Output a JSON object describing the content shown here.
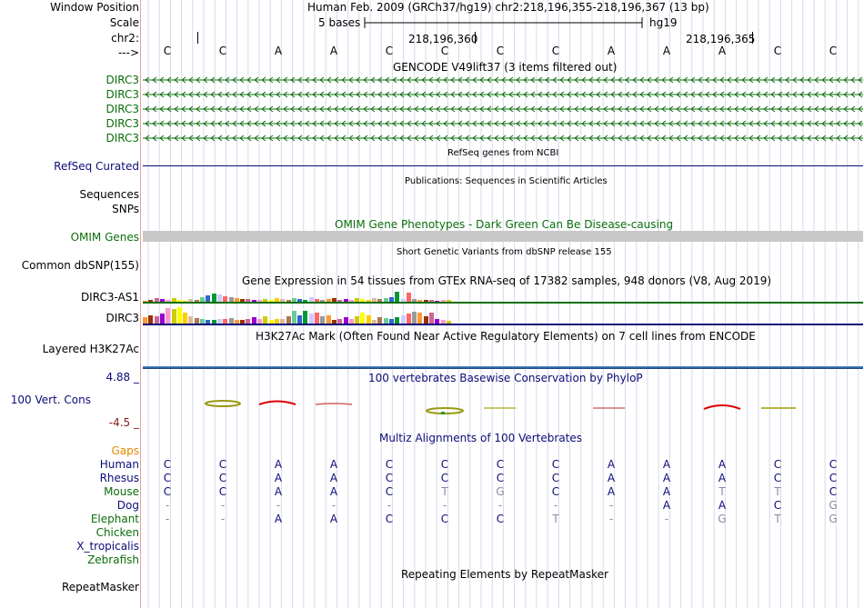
{
  "header": {
    "window_position_label": "Window Position",
    "scale_label": "Scale",
    "chr_label": "chr2:",
    "strand_label": "--->",
    "position_text": "Human Feb. 2009 (GRCh37/hg19)   chr2:218,196,355-218,196,367 (13 bp)",
    "scale_text": "5 bases",
    "assembly_text": "hg19",
    "tick_1": "218,196,360",
    "tick_2": "218,196,365"
  },
  "sequence": [
    "C",
    "C",
    "A",
    "A",
    "C",
    "C",
    "C",
    "C",
    "A",
    "A",
    "A",
    "C",
    "C"
  ],
  "gencode": {
    "title": "GENCODE V49lift37 (3 items filtered out)",
    "items": [
      "DIRC3",
      "DIRC3",
      "DIRC3",
      "DIRC3",
      "DIRC3"
    ]
  },
  "refseq": {
    "title": "RefSeq genes from NCBI",
    "label": "RefSeq Curated"
  },
  "publications": {
    "title": "Publications: Sequences in Scientific Articles",
    "label_1": "Sequences",
    "label_2": "SNPs"
  },
  "omim": {
    "title": "OMIM Gene Phenotypes - Dark Green Can Be Disease-causing",
    "label": "OMIM Genes"
  },
  "dbsnp": {
    "title": "Short Genetic Variants from dbSNP release 155",
    "label": "Common dbSNP(155)"
  },
  "gtex": {
    "title": "Gene Expression in 54 tissues from GTEx RNA-seq of 17382 samples, 948 donors (V8, Aug 2019)",
    "label_1": "DIRC3-AS1",
    "label_2": "DIRC3"
  },
  "h3k27ac": {
    "title": "H3K27Ac Mark (Often Found Near Active Regulatory Elements) on 7 cell lines from ENCODE",
    "label": "Layered H3K27Ac"
  },
  "cons": {
    "title": "100 vertebrates Basewise Conservation by PhyloP",
    "label": "100 Vert. Cons",
    "max": "4.88 _",
    "min": "-4.5 _"
  },
  "multiz": {
    "title": "Multiz Alignments of 100 Vertebrates",
    "gaps_label": "Gaps",
    "species": [
      {
        "name": "Human",
        "seq": [
          "C",
          "C",
          "A",
          "A",
          "C",
          "C",
          "C",
          "C",
          "A",
          "A",
          "A",
          "C",
          "C"
        ]
      },
      {
        "name": "Rhesus",
        "seq": [
          "C",
          "C",
          "A",
          "A",
          "C",
          "C",
          "C",
          "C",
          "A",
          "A",
          "A",
          "C",
          "C"
        ]
      },
      {
        "name": "Mouse",
        "seq": [
          "C",
          "C",
          "A",
          "A",
          "C",
          "T",
          "G",
          "C",
          "A",
          "A",
          "T",
          "T",
          "C"
        ]
      },
      {
        "name": "Dog",
        "seq": [
          "-",
          "-",
          "-",
          "-",
          "-",
          "-",
          "-",
          "-",
          "-",
          "A",
          "A",
          "C",
          "G"
        ]
      },
      {
        "name": "Elephant",
        "seq": [
          "-",
          "-",
          "A",
          "A",
          "C",
          "C",
          "C",
          "T",
          "-",
          "-",
          "G",
          "T",
          "G"
        ]
      },
      {
        "name": "Chicken",
        "seq": []
      },
      {
        "name": "X_tropicalis",
        "seq": []
      },
      {
        "name": "Zebrafish",
        "seq": []
      }
    ]
  },
  "repeatmasker": {
    "title": "Repeating Elements by RepeatMasker",
    "label": "RepeatMasker"
  },
  "colors": {
    "gene_green": "#0b6e0b",
    "navy": "#0c0c78",
    "omim_gray": "#c8c8c8",
    "accent_orange": "#e08a00"
  }
}
